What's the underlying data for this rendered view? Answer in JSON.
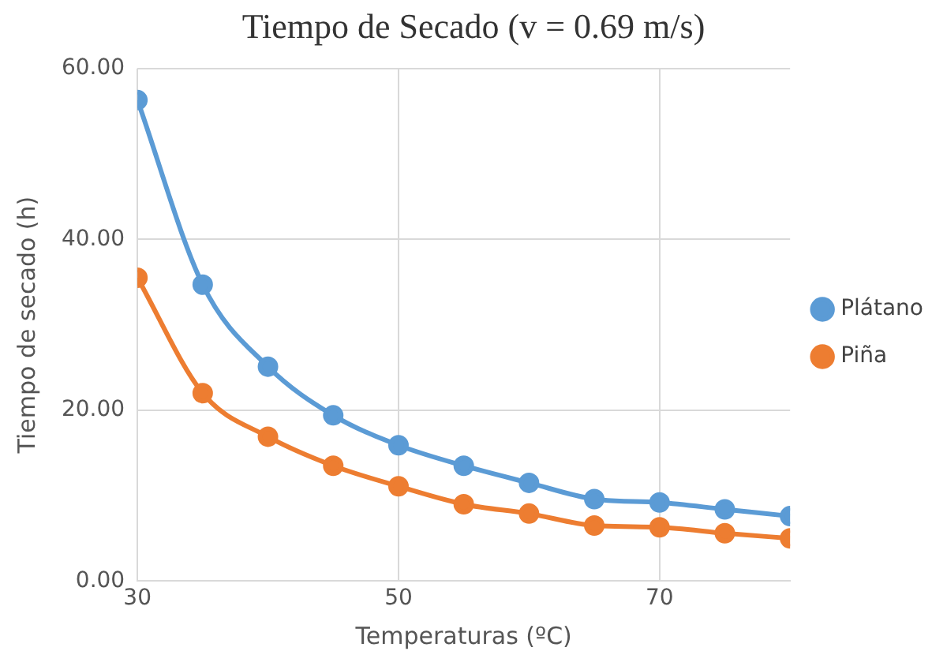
{
  "chart_data": {
    "type": "line",
    "title": "Tiempo de Secado (v = 0.69 m/s)",
    "xlabel": "Temperaturas (ºC)",
    "ylabel": "Tiempo de secado (h)",
    "x": [
      30,
      35,
      40,
      45,
      50,
      55,
      60,
      65,
      70,
      75,
      80
    ],
    "series": [
      {
        "name": "Plátano",
        "color": "#5b9bd5",
        "values": [
          56.3,
          34.7,
          25.1,
          19.4,
          15.9,
          13.5,
          11.5,
          9.6,
          9.2,
          8.4,
          7.6
        ]
      },
      {
        "name": "Piña",
        "color": "#ed7d31",
        "values": [
          35.5,
          22.0,
          16.9,
          13.5,
          11.1,
          9.0,
          7.9,
          6.5,
          6.3,
          5.6,
          5.0
        ]
      }
    ],
    "xlim": [
      30,
      80
    ],
    "xticks": [
      30,
      50,
      70
    ],
    "ylim": [
      0,
      60
    ],
    "yticks": [
      {
        "value": 0,
        "label": "0.00"
      },
      {
        "value": 20,
        "label": "20.00"
      },
      {
        "value": 40,
        "label": "40.00"
      },
      {
        "value": 60,
        "label": "60.00"
      }
    ],
    "grid": true,
    "legend": "right",
    "marker": "circle",
    "line_style": "solid"
  }
}
